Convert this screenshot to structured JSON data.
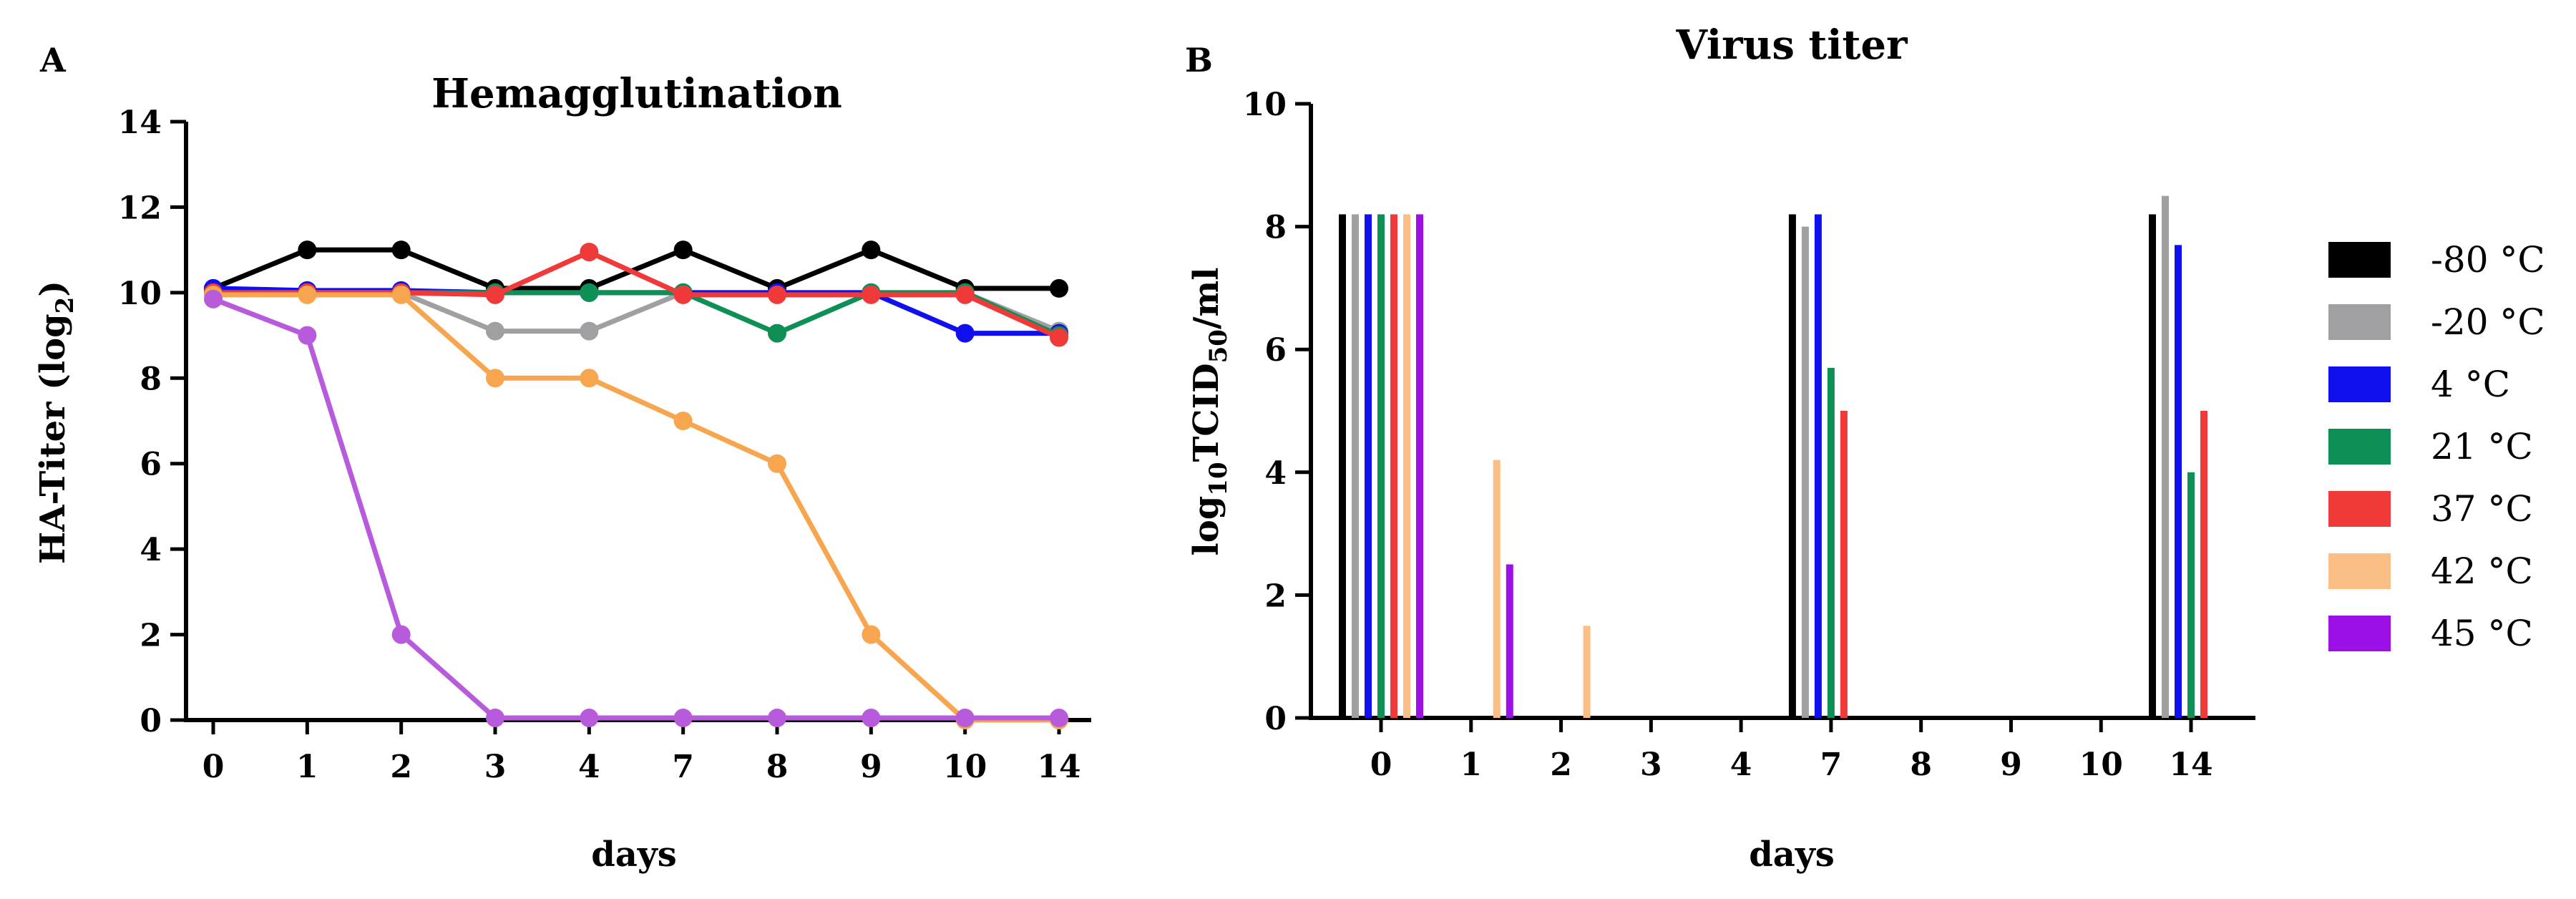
{
  "chart_data": [
    {
      "panel_label": "A",
      "type": "line",
      "title": "Hemagglutination",
      "xlabel": "days",
      "ylabel": "HA-Titer (log",
      "ylabel_sub": "2",
      "ylabel_end": ")",
      "categories": [
        "0",
        "1",
        "2",
        "3",
        "4",
        "7",
        "8",
        "9",
        "10",
        "14"
      ],
      "ylim": [
        0,
        14
      ],
      "yticks": [
        0,
        2,
        4,
        6,
        8,
        10,
        12,
        14
      ],
      "grid": false,
      "series": [
        {
          "name": "-80 °C",
          "color": "#000000",
          "values": [
            10.1,
            11,
            11,
            10.1,
            10.1,
            11,
            10.1,
            11,
            10.1,
            10.1
          ]
        },
        {
          "name": "-20 °C",
          "color": "#a0a0a2",
          "values": [
            10,
            10,
            10,
            9.1,
            9.1,
            10,
            10,
            10,
            10,
            9.1
          ]
        },
        {
          "name": "4 °C",
          "color": "#1010ee",
          "values": [
            10.1,
            10.05,
            10.05,
            10,
            10,
            10,
            10,
            10,
            9.05,
            9.05
          ]
        },
        {
          "name": "21 °C",
          "color": "#0e8f55",
          "values": [
            10,
            10,
            10,
            10,
            10,
            10,
            9.05,
            10,
            10,
            9
          ]
        },
        {
          "name": "37 °C",
          "color": "#f03a3a",
          "values": [
            10,
            10,
            10,
            9.95,
            10.95,
            9.95,
            9.95,
            9.95,
            9.95,
            8.95
          ]
        },
        {
          "name": "42 °C",
          "color": "#f8a550",
          "values": [
            9.95,
            9.95,
            9.95,
            8,
            8,
            7,
            6,
            2,
            0,
            0
          ]
        },
        {
          "name": "45 °C",
          "color": "#b75bdc",
          "values": [
            9.85,
            9,
            2,
            0.05,
            0.05,
            0.05,
            0.05,
            0.05,
            0.05,
            0.05
          ]
        }
      ]
    },
    {
      "panel_label": "B",
      "type": "bar",
      "title": "Virus titer",
      "xlabel": "days",
      "ylabel_prefix": "log",
      "ylabel_sub1": "10",
      "ylabel_mid": "TCID",
      "ylabel_sub2": "50",
      "ylabel_end": "/ml",
      "categories": [
        "0",
        "1",
        "2",
        "3",
        "4",
        "7",
        "8",
        "9",
        "10",
        "14"
      ],
      "ylim": [
        0,
        10
      ],
      "yticks": [
        0,
        2,
        4,
        6,
        8,
        10
      ],
      "grid": false,
      "legend_position": "right",
      "series": [
        {
          "name": "-80 °C",
          "color": "#000000",
          "values": [
            8.2,
            0,
            0,
            0,
            0,
            8.2,
            0,
            0,
            0,
            8.2
          ]
        },
        {
          "name": "-20 °C",
          "color": "#a0a0a2",
          "values": [
            8.2,
            0,
            0,
            0,
            0,
            8.0,
            0,
            0,
            0,
            8.5
          ]
        },
        {
          "name": "4 °C",
          "color": "#1010ee",
          "values": [
            8.2,
            0,
            0,
            0,
            0,
            8.2,
            0,
            0,
            0,
            7.7
          ]
        },
        {
          "name": "21 °C",
          "color": "#0e8f55",
          "values": [
            8.2,
            0,
            0,
            0,
            0,
            5.7,
            0,
            0,
            0,
            4.0
          ]
        },
        {
          "name": "37 °C",
          "color": "#f03a3a",
          "values": [
            8.2,
            0,
            0,
            0,
            0,
            5.0,
            0,
            0,
            0,
            5.0
          ]
        },
        {
          "name": "42 °C",
          "color": "#fbbf86",
          "values": [
            8.2,
            4.2,
            1.5,
            0,
            0,
            0,
            0,
            0,
            0,
            0
          ]
        },
        {
          "name": "45 °C",
          "color": "#9b10e6",
          "values": [
            8.2,
            2.5,
            0,
            0,
            0,
            0,
            0,
            0,
            0,
            0
          ]
        }
      ]
    }
  ]
}
